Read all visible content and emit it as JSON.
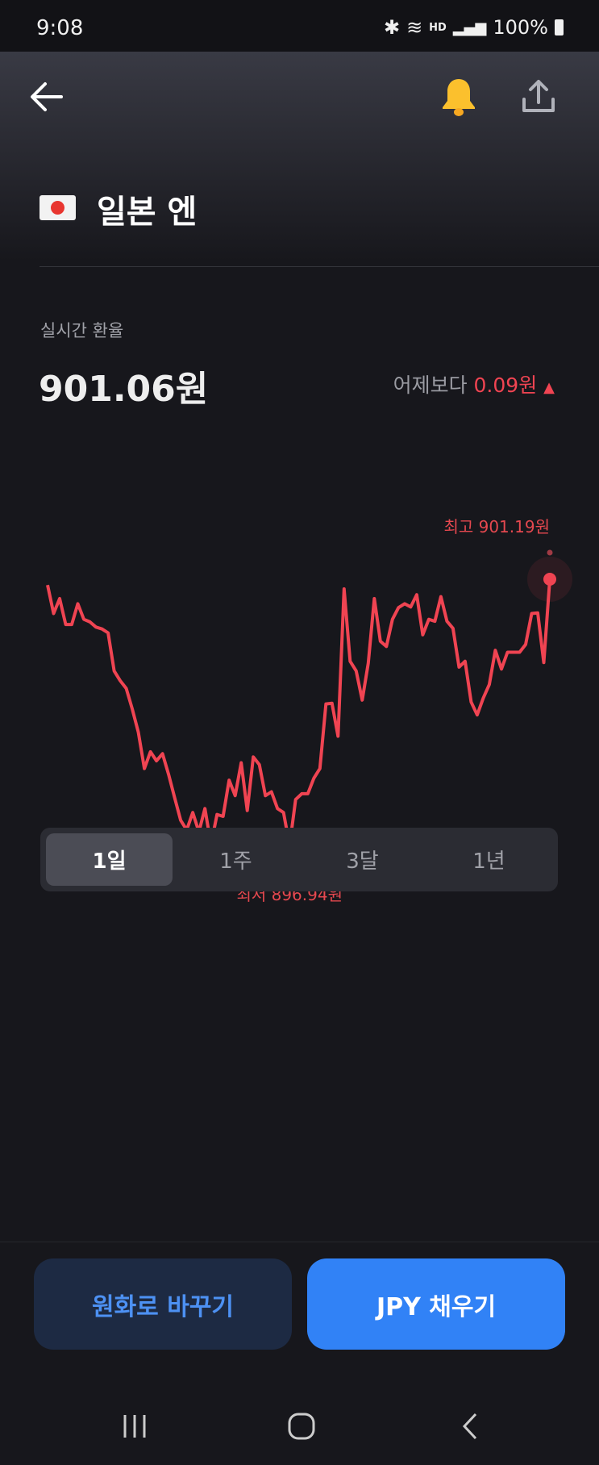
{
  "status_bar": {
    "time": "9:08",
    "hd_label": "HD",
    "battery": "100%"
  },
  "header": {
    "back_icon": "arrow-left-icon",
    "alert_icon": "bell-icon",
    "share_icon": "share-icon",
    "bell_color": "#fbc02d"
  },
  "currency": {
    "flag": "japan-flag",
    "name": "일본 엔"
  },
  "rate": {
    "label": "실시간 환율",
    "value": "901.06원",
    "change_prefix": "어제보다",
    "change_value": "0.09원",
    "change_arrow": "▲",
    "up_color": "#f04452"
  },
  "chart_data": {
    "type": "line",
    "period": "1일",
    "high_label": "최고 901.19원",
    "low_label": "최저 896.94원",
    "high": 901.19,
    "low": 896.94,
    "color": "#f04452",
    "values": [
      900.97,
      900.53,
      900.76,
      900.36,
      900.36,
      900.68,
      900.44,
      900.4,
      900.32,
      900.29,
      900.23,
      899.64,
      899.49,
      899.37,
      899.05,
      898.69,
      898.13,
      898.39,
      898.25,
      898.36,
      898.04,
      897.68,
      897.33,
      897.18,
      897.45,
      897.15,
      897.51,
      896.95,
      897.42,
      897.39,
      897.95,
      897.71,
      898.22,
      897.48,
      898.31,
      898.19,
      897.71,
      897.77,
      897.51,
      897.45,
      896.94,
      897.65,
      897.74,
      897.74,
      897.98,
      898.13,
      899.13,
      899.14,
      898.63,
      900.91,
      899.79,
      899.64,
      899.19,
      899.76,
      900.76,
      900.1,
      900.02,
      900.44,
      900.62,
      900.68,
      900.63,
      900.82,
      900.2,
      900.44,
      900.41,
      900.79,
      900.41,
      900.3,
      899.7,
      899.79,
      899.16,
      898.96,
      899.22,
      899.43,
      899.96,
      899.67,
      899.93,
      899.93,
      899.93,
      900.05,
      900.53,
      900.54,
      899.77,
      901.06
    ]
  },
  "periods": [
    "1일",
    "1주",
    "3달",
    "1년"
  ],
  "selected_period": "1일",
  "actions": {
    "to_krw": "원화로 바꾸기",
    "fill_jpy": "JPY 채우기"
  },
  "nav": {
    "recents": "recents-icon",
    "home": "home-icon",
    "back": "nav-back-icon"
  }
}
